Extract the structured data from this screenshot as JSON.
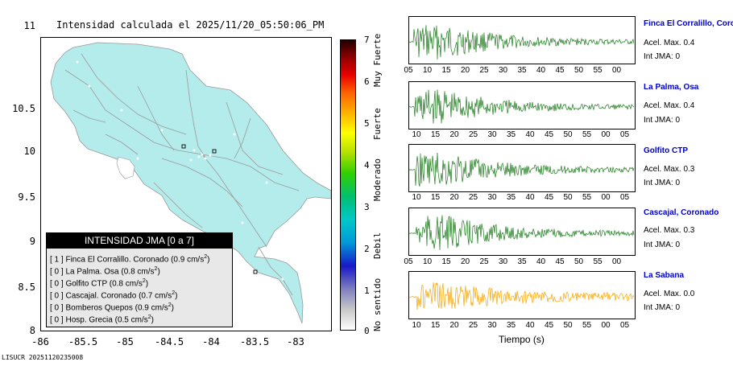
{
  "map": {
    "title": "Intensidad calculada el 2025/11/20_05:50:06_PM",
    "lat_ticks": [
      "11",
      "10.5",
      "10",
      "9.5",
      "9",
      "8.5",
      "8"
    ],
    "lon_ticks": [
      "-86",
      "-85.5",
      "-85",
      "-84.5",
      "-84",
      "-83.5",
      "-83"
    ],
    "code": "LISUCR 20251120235008",
    "land_color": "#b4ecec"
  },
  "colorbar": {
    "ticks": [
      "7",
      "6",
      "5",
      "4",
      "3",
      "2",
      "1",
      "0"
    ],
    "labels": [
      "Muy Fuerte",
      "Fuerte",
      "Moderado",
      "Debil",
      "No sentido"
    ]
  },
  "legend": {
    "title": "INTENSIDAD JMA [0 a 7]",
    "rows": [
      {
        "int": "[ 1 ]",
        "name": "Finca El Corralillo. Coronado",
        "val": "(0.9 cm/s",
        "sup": "2",
        "tail": ")"
      },
      {
        "int": "[ 0 ]",
        "name": "La Palma. Osa",
        "val": "(0.8 cm/s",
        "sup": "2",
        "tail": ")"
      },
      {
        "int": "[ 0 ]",
        "name": "Golfito CTP",
        "val": "(0.8 cm/s",
        "sup": "2",
        "tail": ")"
      },
      {
        "int": "[ 0 ]",
        "name": "Cascajal. Coronado",
        "val": "(0.7 cm/s",
        "sup": "2",
        "tail": ")"
      },
      {
        "int": "[ 0 ]",
        "name": "Bomberos Quepos",
        "val": "(0.9 cm/s",
        "sup": "2",
        "tail": ")"
      },
      {
        "int": "[ 0 ]",
        "name": "Hosp. Grecia",
        "val": "(0.5 cm/s",
        "sup": "2",
        "tail": ")"
      }
    ]
  },
  "waveforms": {
    "xlabel": "Tiempo (s)",
    "stations": [
      {
        "name": "Finca El Corralillo, Coronado",
        "acel": "Acel. Max. 0.4",
        "jma": "Int JMA: 0",
        "color": "#1a7a1a",
        "ticks": [
          "05",
          "10",
          "15",
          "20",
          "25",
          "30",
          "35",
          "40",
          "45",
          "50",
          "55",
          "00"
        ]
      },
      {
        "name": "La Palma, Osa",
        "acel": "Acel. Max. 0.4",
        "jma": "Int JMA: 0",
        "color": "#1a7a1a",
        "ticks": [
          "10",
          "15",
          "20",
          "25",
          "30",
          "35",
          "40",
          "45",
          "50",
          "55",
          "00",
          "05"
        ]
      },
      {
        "name": "Golfito CTP",
        "acel": "Acel. Max. 0.3",
        "jma": "Int JMA: 0",
        "color": "#1a7a1a",
        "ticks": [
          "10",
          "15",
          "20",
          "25",
          "30",
          "35",
          "40",
          "45",
          "50",
          "55",
          "00",
          "05"
        ]
      },
      {
        "name": "Cascajal, Coronado",
        "acel": "Acel. Max. 0.3",
        "jma": "Int JMA: 0",
        "color": "#1a7a1a",
        "ticks": [
          "05",
          "10",
          "15",
          "20",
          "25",
          "30",
          "35",
          "40",
          "45",
          "50",
          "55",
          "00"
        ]
      },
      {
        "name": "La Sabana",
        "acel": "Acel. Max. 0.0",
        "jma": "Int JMA: 0",
        "color": "#f5a500",
        "ticks": [
          "10",
          "15",
          "20",
          "25",
          "30",
          "35",
          "40",
          "45",
          "50",
          "55",
          "00",
          "05"
        ]
      }
    ]
  }
}
